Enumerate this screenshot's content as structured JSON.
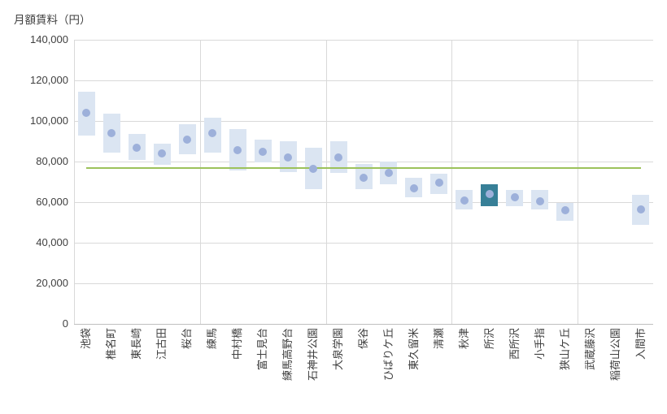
{
  "title": "月額賃料（円）",
  "chart_data": {
    "type": "bar",
    "subtype": "floating-range-boxes-with-median-dot",
    "title": "月額賃料（円）",
    "ylabel": "月額賃料（円）",
    "xlabel": "",
    "categories": [
      "池袋",
      "椎名町",
      "東長崎",
      "江古田",
      "桜台",
      "練馬",
      "中村橋",
      "富士見台",
      "練馬高野台",
      "石神井公園",
      "大泉学園",
      "保谷",
      "ひばりケ丘",
      "東久留米",
      "清瀬",
      "秋津",
      "所沢",
      "西所沢",
      "小手指",
      "狭山ケ丘",
      "武蔵藤沢",
      "稲荷山公園",
      "入間市"
    ],
    "series": [
      {
        "name": "range_low",
        "values": [
          93000,
          84500,
          81000,
          78500,
          83500,
          84500,
          75500,
          79500,
          75000,
          66500,
          74500,
          66500,
          69000,
          62500,
          64000,
          56500,
          58000,
          58000,
          56500,
          51000,
          null,
          null,
          49000
        ]
      },
      {
        "name": "range_high",
        "values": [
          114500,
          103500,
          93500,
          89000,
          98500,
          101500,
          96000,
          91000,
          90000,
          87000,
          90000,
          79000,
          80000,
          72000,
          74000,
          66000,
          69000,
          66000,
          66000,
          59500,
          null,
          null,
          63500
        ]
      },
      {
        "name": "median_dot",
        "values": [
          104000,
          94000,
          87000,
          84000,
          91000,
          94000,
          85500,
          85000,
          82000,
          76500,
          82000,
          72000,
          74500,
          67000,
          69500,
          61000,
          64000,
          62500,
          60500,
          56000,
          null,
          null,
          56500
        ]
      }
    ],
    "reference_line": {
      "value": 77000,
      "span": "first-to-last-category"
    },
    "highlight_category": "所沢",
    "highlight_index": 16,
    "ylim": [
      0,
      140000
    ],
    "ytick_values": [
      0,
      20000,
      40000,
      60000,
      80000,
      100000,
      120000,
      140000
    ],
    "ytick_labels": [
      "0",
      "20,000",
      "40,000",
      "60,000",
      "80,000",
      "100,000",
      "120,000",
      "140,000"
    ],
    "x_gridline_positions": [
      5,
      10,
      15,
      20
    ],
    "grid": true,
    "legend": "none",
    "colors": {
      "box": "#dbe5f2",
      "box_highlight": "#377f97",
      "dot": "#9db0da",
      "reference_line": "#9cc25b",
      "gridline": "#d9d9d9",
      "axis": "#bfbfbf",
      "text": "#3f3f3f"
    }
  }
}
